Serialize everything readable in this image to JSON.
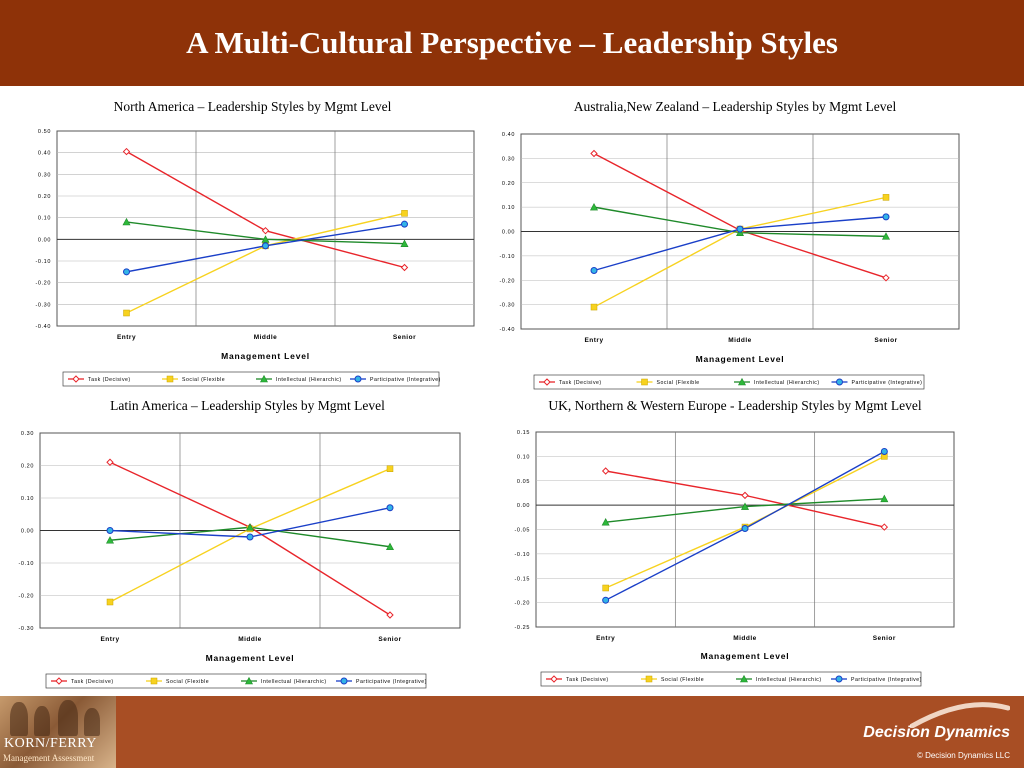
{
  "page_title": "A Multi-Cultural Perspective – Leadership Styles",
  "footer": {
    "logo_left_name": "KORN/FERRY",
    "logo_left_sub": "Management Assessment",
    "logo_right_name": "Decision Dynamics",
    "copyright": "© Decision Dynamics LLC"
  },
  "colors": {
    "header_bg": "#8e3208",
    "footer_bg": "#a84e24",
    "task": "#e8252b",
    "social": "#f7d21f",
    "intellectual": "#1f8a2a",
    "participative": "#1a3fc8"
  },
  "chart_data": [
    {
      "type": "line",
      "title": "North America – Leadership Styles by Mgmt Level",
      "xlabel": "Management Level",
      "ylabel": "",
      "categories": [
        "Entry",
        "Middle",
        "Senior"
      ],
      "ylim": [
        -0.4,
        0.5
      ],
      "yticks": [
        "-0.40",
        "-0.30",
        "-0.20",
        "-0.10",
        "0.00",
        "0.10",
        "0.20",
        "0.30",
        "0.40",
        "0.50"
      ],
      "grid": true,
      "legend_position": "bottom",
      "series": [
        {
          "name": "Task (Decisive)",
          "values": [
            0.405,
            0.04,
            -0.13
          ]
        },
        {
          "name": "Social (Flexible",
          "values": [
            -0.34,
            -0.03,
            0.12
          ]
        },
        {
          "name": "Intellectual (Hierarchic)",
          "values": [
            0.08,
            0.0,
            -0.02
          ]
        },
        {
          "name": "Participative (Integrative)",
          "values": [
            -0.15,
            -0.03,
            0.07
          ]
        }
      ]
    },
    {
      "type": "line",
      "title": "Australia,New Zealand – Leadership Styles by Mgmt Level",
      "xlabel": "Management Level",
      "ylabel": "",
      "categories": [
        "Entry",
        "Middle",
        "Senior"
      ],
      "ylim": [
        -0.4,
        0.4
      ],
      "yticks": [
        "-0.40",
        "-0.30",
        "-0.20",
        "-0.10",
        "0.00",
        "0.10",
        "0.20",
        "0.30",
        "0.40"
      ],
      "grid": true,
      "legend_position": "bottom",
      "series": [
        {
          "name": "Task (Decisive)",
          "values": [
            0.32,
            0.005,
            -0.19
          ]
        },
        {
          "name": "Social (Flexible",
          "values": [
            -0.31,
            0.01,
            0.14
          ]
        },
        {
          "name": "Intellectual (Hierarchic)",
          "values": [
            0.1,
            -0.005,
            -0.02
          ]
        },
        {
          "name": "Participative (Integrative)",
          "values": [
            -0.16,
            0.01,
            0.06
          ]
        }
      ]
    },
    {
      "type": "line",
      "title": "Latin America – Leadership Styles by Mgmt Level",
      "xlabel": "Management Level",
      "ylabel": "",
      "categories": [
        "Entry",
        "Middle",
        "Senior"
      ],
      "ylim": [
        -0.3,
        0.3
      ],
      "yticks": [
        "-0.30",
        "-0.20",
        "-0.10",
        "0.00",
        "0.10",
        "0.20",
        "0.30"
      ],
      "grid": true,
      "legend_position": "bottom",
      "series": [
        {
          "name": "Task (Decisive)",
          "values": [
            0.21,
            0.01,
            -0.26
          ]
        },
        {
          "name": "Social (Flexible",
          "values": [
            -0.22,
            0.005,
            0.19
          ]
        },
        {
          "name": "Intellectual (Hierarchic)",
          "values": [
            -0.03,
            0.01,
            -0.05
          ]
        },
        {
          "name": "Participative (Integrative)",
          "values": [
            0.0,
            -0.02,
            0.07
          ]
        }
      ]
    },
    {
      "type": "line",
      "title": "UK, Northern & Western Europe - Leadership Styles by Mgmt Level",
      "xlabel": "Management Level",
      "ylabel": "",
      "categories": [
        "Entry",
        "Middle",
        "Senior"
      ],
      "ylim": [
        -0.25,
        0.15
      ],
      "yticks": [
        "-0.25",
        "-0.20",
        "-0.15",
        "-0.10",
        "-0.05",
        "0.00",
        "0.05",
        "0.10",
        "0.15"
      ],
      "grid": true,
      "legend_position": "bottom",
      "series": [
        {
          "name": "Task (Decisive)",
          "values": [
            0.07,
            0.02,
            -0.045
          ]
        },
        {
          "name": "Social (Flexible",
          "values": [
            -0.17,
            -0.045,
            0.1
          ]
        },
        {
          "name": "Intellectual (Hierarchic)",
          "values": [
            -0.035,
            -0.003,
            0.013
          ]
        },
        {
          "name": "Participative (Integrative)",
          "values": [
            -0.195,
            -0.048,
            0.11
          ]
        }
      ]
    }
  ]
}
